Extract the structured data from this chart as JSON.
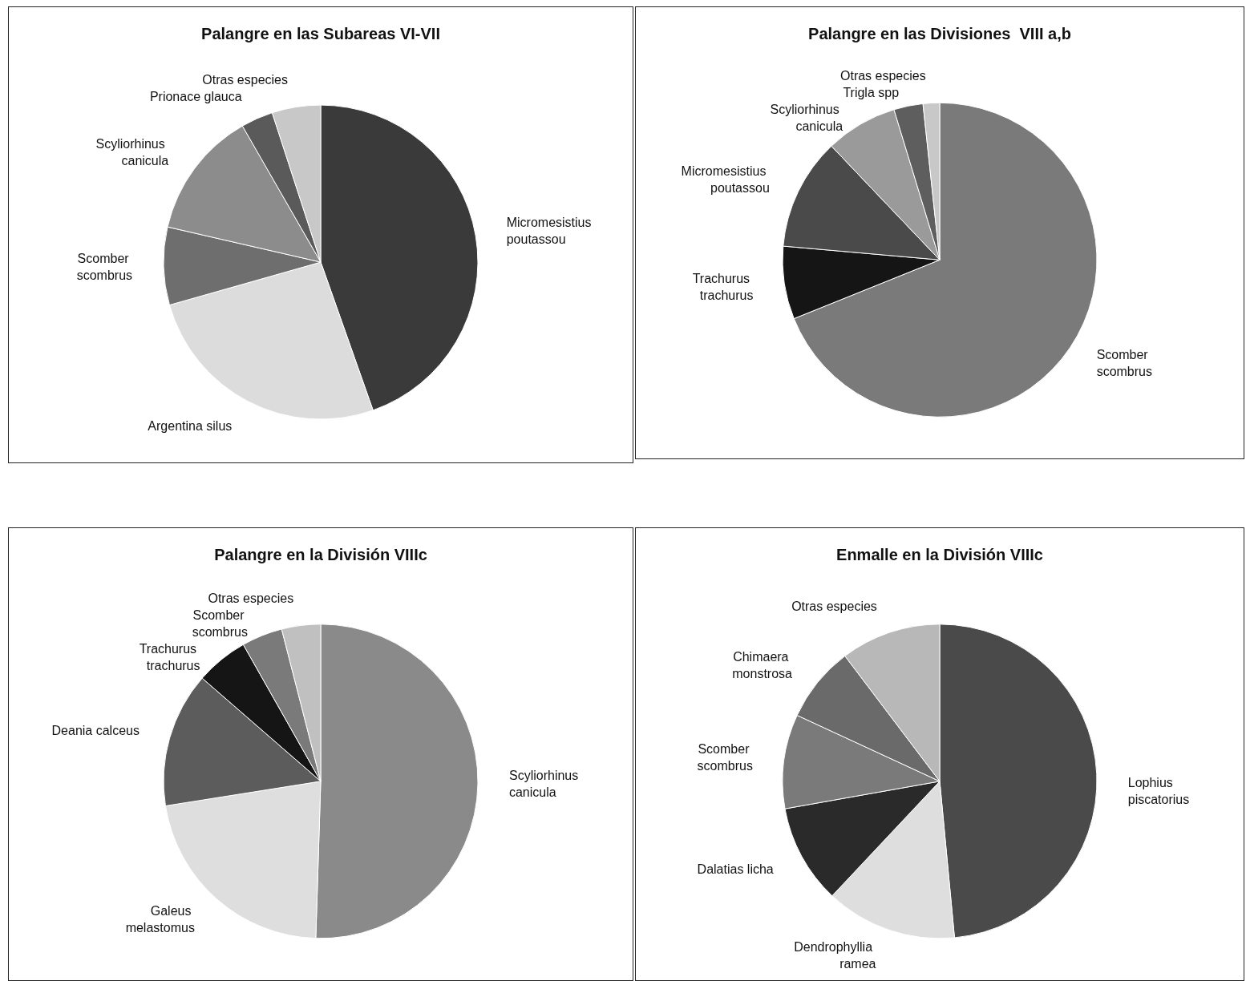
{
  "chart_data": [
    {
      "type": "pie",
      "title": "Palangre en las Subareas VI-VII",
      "categories": [
        "Micromesistius poutassou",
        "Argentina silus",
        "Scomber scombrus",
        "Scyliorhinus canicula",
        "Prionace glauca",
        "Otras especies"
      ],
      "values": [
        44.6,
        26,
        8,
        13.1,
        3.3,
        5
      ],
      "colors": [
        "#3a3a3a",
        "#dcdcdc",
        "#6e6e6e",
        "#8c8c8c",
        "#5a5a5a",
        "#c8c8c8"
      ]
    },
    {
      "type": "pie",
      "title": "Palangre en las Divisiones  VIII a,b",
      "categories": [
        "Scomber scombrus",
        "Trachurus trachurus",
        "Micromesistius poutassou",
        "Scyliorhinus canicula",
        "Trigla spp",
        "Otras especies"
      ],
      "values": [
        68.9,
        7.5,
        11.5,
        7.4,
        3,
        1.7
      ],
      "colors": [
        "#7a7a7a",
        "#151515",
        "#4a4a4a",
        "#9a9a9a",
        "#5e5e5e",
        "#c8c8c8"
      ]
    },
    {
      "type": "pie",
      "title": "Palangre en la División VIIIc",
      "categories": [
        "Scyliorhinus canicula",
        "Galeus melastomus",
        "Deania calceus",
        "Trachurus trachurus",
        "Scomber scombrus",
        "Otras especies"
      ],
      "values": [
        50.5,
        22,
        13.9,
        5.4,
        4.2,
        4
      ],
      "colors": [
        "#8a8a8a",
        "#dedede",
        "#5c5c5c",
        "#151515",
        "#7a7a7a",
        "#c0c0c0"
      ]
    },
    {
      "type": "pie",
      "title": "Enmalle en la División VIIIc",
      "categories": [
        "Lophius piscatorius",
        "Dendrophyllia ramea",
        "Dalatias licha",
        "Scomber scombrus",
        "Chimaera monstrosa",
        "Otras especies"
      ],
      "values": [
        48.5,
        13.5,
        10.2,
        9.7,
        7.8,
        10.3
      ],
      "colors": [
        "#4a4a4a",
        "#dedede",
        "#2a2a2a",
        "#7a7a7a",
        "#6a6a6a",
        "#b8b8b8"
      ]
    }
  ]
}
